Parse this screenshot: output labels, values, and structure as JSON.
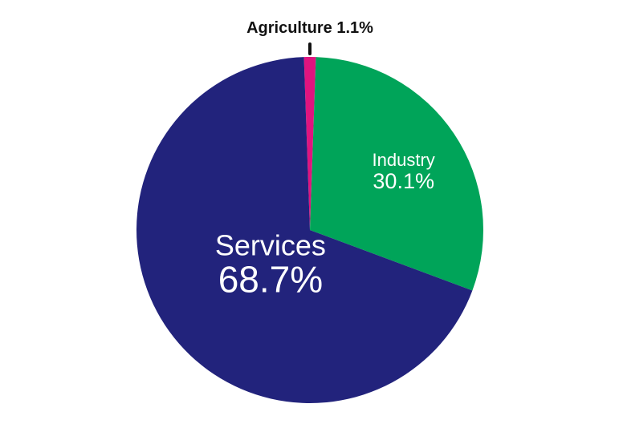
{
  "chart_data": {
    "type": "pie",
    "title": "",
    "slices": [
      {
        "label": "Agriculture",
        "value": 1.1,
        "display": "1.1%",
        "color": "#e0147f",
        "label_position": "outside-top"
      },
      {
        "label": "Industry",
        "value": 30.1,
        "display": "30.1%",
        "color": "#00a459",
        "label_position": "inside"
      },
      {
        "label": "Services",
        "value": 68.7,
        "display": "68.7%",
        "color": "#22237c",
        "label_position": "inside"
      }
    ],
    "start_angle_deg": 0,
    "direction": "clockwise",
    "label_text_color_inside": "#ffffff",
    "label_text_color_outside": "#111111",
    "leader_color": "#111111"
  }
}
